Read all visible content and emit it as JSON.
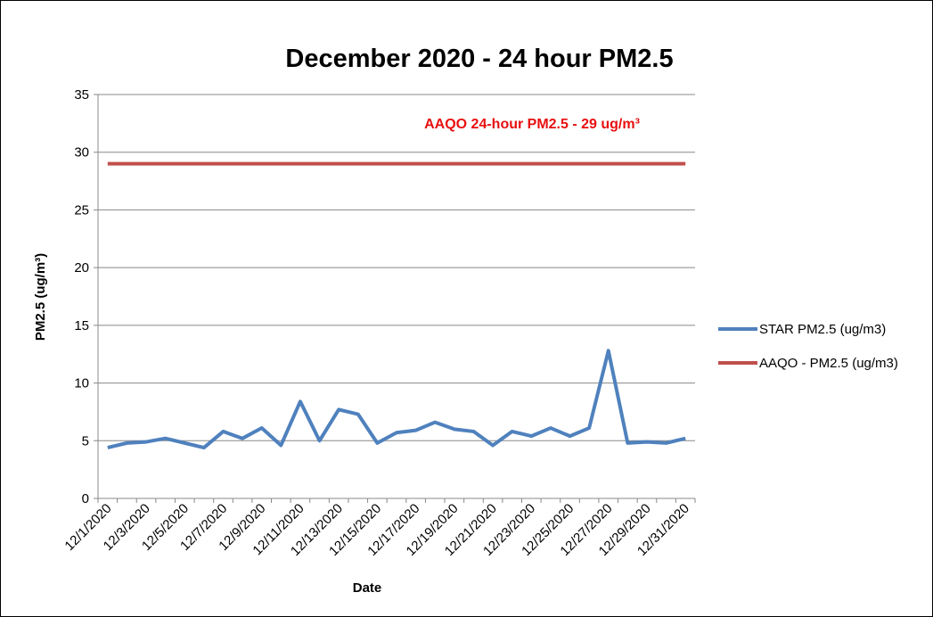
{
  "chart_data": {
    "type": "line",
    "title": "December 2020 - 24 hour PM2.5",
    "x_label": "Date",
    "y_label": "PM2.5 (ug/m³)",
    "annotation": "AAQO 24-hour PM2.5 - 29 ug/m³",
    "categories": [
      "12/1/2020",
      null,
      "12/3/2020",
      null,
      "12/5/2020",
      null,
      "12/7/2020",
      null,
      "12/9/2020",
      null,
      "12/11/2020",
      null,
      "12/13/2020",
      null,
      "12/15/2020",
      null,
      "12/17/2020",
      null,
      "12/19/2020",
      null,
      "12/21/2020",
      null,
      "12/23/2020",
      null,
      "12/25/2020",
      null,
      "12/27/2020",
      null,
      "12/29/2020",
      null,
      "12/31/2020"
    ],
    "series": [
      {
        "name": "STAR PM2.5 (ug/m3)",
        "color": "#4f81bd",
        "values": [
          4.4,
          4.8,
          4.9,
          5.2,
          4.8,
          4.4,
          5.8,
          5.2,
          6.1,
          4.6,
          8.4,
          5.0,
          7.7,
          7.3,
          4.8,
          5.7,
          5.9,
          6.6,
          6.0,
          5.8,
          4.6,
          5.8,
          5.4,
          6.1,
          5.4,
          6.1,
          12.8,
          4.8,
          4.9,
          4.8,
          5.2
        ]
      },
      {
        "name": "AAQO - PM2.5 (ug/m3)",
        "color": "#c0504d",
        "values": [
          29,
          29,
          29,
          29,
          29,
          29,
          29,
          29,
          29,
          29,
          29,
          29,
          29,
          29,
          29,
          29,
          29,
          29,
          29,
          29,
          29,
          29,
          29,
          29,
          29,
          29,
          29,
          29,
          29,
          29,
          29
        ]
      }
    ],
    "ylim": [
      0,
      35
    ],
    "yticks": [
      0,
      5,
      10,
      15,
      20,
      25,
      30,
      35
    ],
    "grid": true,
    "legend": "right"
  }
}
